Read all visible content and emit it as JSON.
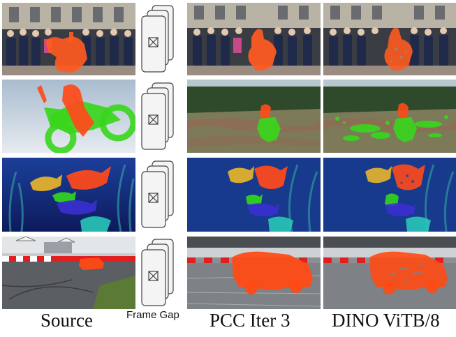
{
  "figure": {
    "columns": [
      {
        "label": "Source"
      },
      {
        "label": "Frame Gap"
      },
      {
        "label": "PCC Iter 3"
      },
      {
        "label": "DINO ViTB/8"
      }
    ],
    "rows": [
      {
        "scene": "breakdancer in front of crowd",
        "mask_colors": [
          "#ff5a1f"
        ]
      },
      {
        "scene": "motocross rider",
        "mask_colors": [
          "#ff4a1a",
          "#38d61c"
        ]
      },
      {
        "scene": "aquarium fish",
        "mask_colors": [
          "#ff4a1a",
          "#e8b52a",
          "#33d61c",
          "#3a2fd0",
          "#29c7b8"
        ]
      },
      {
        "scene": "rally car on track",
        "mask_colors": [
          "#ff4a14"
        ]
      }
    ],
    "frame_icon": "image-placeholder-icon"
  }
}
